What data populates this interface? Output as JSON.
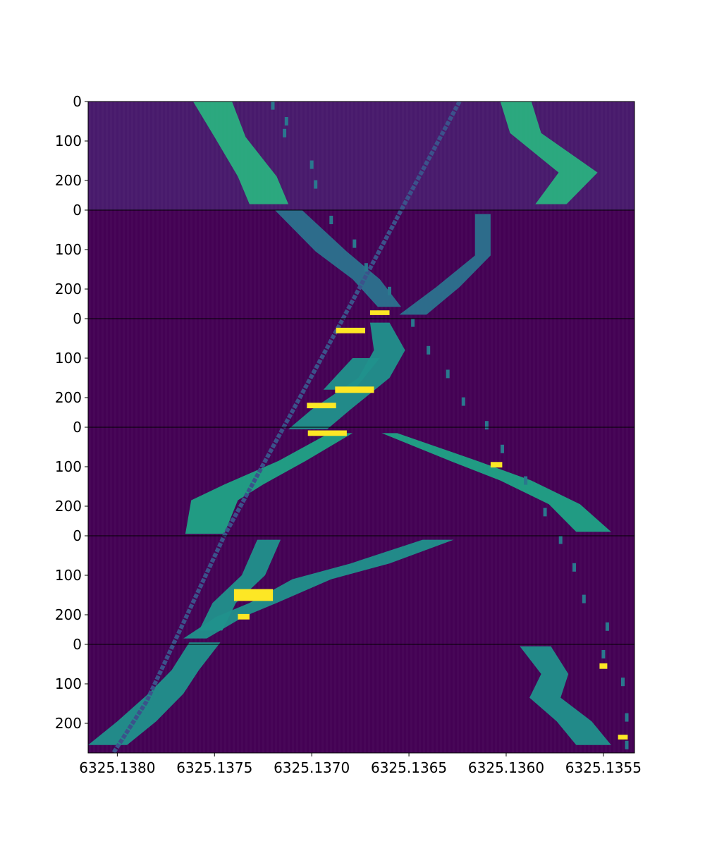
{
  "chart_data": {
    "type": "heatmap",
    "title": "",
    "xlabel": "",
    "ylabel": "",
    "colormap": "viridis",
    "background_color": "#46085c",
    "panel_background_colors": [
      "#481a6c",
      "#440154",
      "#440154",
      "#440154",
      "#440154",
      "#440154"
    ],
    "xlim": [
      6325.13815,
      6325.13534
    ],
    "x_ticks": [
      {
        "value": 6325.138,
        "label": "6325.1380"
      },
      {
        "value": 6325.1375,
        "label": "6325.1375"
      },
      {
        "value": 6325.137,
        "label": "6325.1370"
      },
      {
        "value": 6325.1365,
        "label": "6325.1365"
      },
      {
        "value": 6325.136,
        "label": "6325.1360"
      },
      {
        "value": 6325.1355,
        "label": "6325.1355"
      }
    ],
    "panels": [
      {
        "ylim": [
          0,
          275
        ],
        "y_ticks": [
          {
            "value": 0,
            "label": "0"
          },
          {
            "value": 100,
            "label": "100"
          },
          {
            "value": 200,
            "label": "200"
          }
        ]
      },
      {
        "ylim": [
          0,
          275
        ],
        "y_ticks": [
          {
            "value": 0,
            "label": "0"
          },
          {
            "value": 100,
            "label": "100"
          },
          {
            "value": 200,
            "label": "200"
          }
        ]
      },
      {
        "ylim": [
          0,
          275
        ],
        "y_ticks": [
          {
            "value": 0,
            "label": "0"
          },
          {
            "value": 100,
            "label": "100"
          },
          {
            "value": 200,
            "label": "200"
          }
        ]
      },
      {
        "ylim": [
          0,
          275
        ],
        "y_ticks": [
          {
            "value": 0,
            "label": "0"
          },
          {
            "value": 100,
            "label": "100"
          },
          {
            "value": 200,
            "label": "200"
          }
        ]
      },
      {
        "ylim": [
          0,
          275
        ],
        "y_ticks": [
          {
            "value": 0,
            "label": "0"
          },
          {
            "value": 100,
            "label": "100"
          },
          {
            "value": 200,
            "label": "200"
          }
        ]
      },
      {
        "ylim": [
          0,
          275
        ],
        "y_ticks": [
          {
            "value": 0,
            "label": "0"
          },
          {
            "value": 100,
            "label": "100"
          },
          {
            "value": 200,
            "label": "200"
          }
        ]
      }
    ],
    "features": [
      {
        "name": "upper-left-branch",
        "kind": "band",
        "color": "#2ab07f",
        "points": [
          {
            "x": 6325.13751,
            "y": 0,
            "half_width": 0.0001
          },
          {
            "x": 6325.13742,
            "y": 90,
            "half_width": 8e-05
          },
          {
            "x": 6325.13728,
            "y": 190,
            "half_width": 0.0001
          },
          {
            "x": 6325.13722,
            "y": 260,
            "half_width": 0.0001
          }
        ]
      },
      {
        "name": "upper-right-branch",
        "kind": "band",
        "color": "#2ab07f",
        "points": [
          {
            "x": 6325.13595,
            "y": 0,
            "half_width": 8e-05
          },
          {
            "x": 6325.1359,
            "y": 80,
            "half_width": 8e-05
          },
          {
            "x": 6325.13563,
            "y": 180,
            "half_width": 0.0001
          },
          {
            "x": 6325.13577,
            "y": 260,
            "half_width": 8e-05
          }
        ]
      },
      {
        "name": "panel-2-left-arm",
        "kind": "band",
        "color": "#2c728e",
        "points": [
          {
            "x": 6325.13712,
            "y": 275,
            "half_width": 7e-05
          },
          {
            "x": 6325.1369,
            "y": 380,
            "half_width": 8e-05
          },
          {
            "x": 6325.13672,
            "y": 450,
            "half_width": 7e-05
          },
          {
            "x": 6325.1366,
            "y": 520,
            "half_width": 6e-05
          }
        ]
      },
      {
        "name": "panel-2-right-arm",
        "kind": "band",
        "color": "#2c728e",
        "points": [
          {
            "x": 6325.13612,
            "y": 285,
            "half_width": 4e-05
          },
          {
            "x": 6325.13612,
            "y": 390,
            "half_width": 4e-05
          },
          {
            "x": 6325.1363,
            "y": 470,
            "half_width": 6e-05
          },
          {
            "x": 6325.13648,
            "y": 540,
            "half_width": 7e-05
          }
        ]
      },
      {
        "name": "panel-3-branches",
        "kind": "band",
        "color": "#21918c",
        "points": [
          {
            "x": 6325.13665,
            "y": 560,
            "half_width": 5e-05
          },
          {
            "x": 6325.1366,
            "y": 630,
            "half_width": 8e-05
          },
          {
            "x": 6325.13668,
            "y": 700,
            "half_width": 8e-05
          },
          {
            "x": 6325.1369,
            "y": 780,
            "half_width": 0.0001
          },
          {
            "x": 6325.13702,
            "y": 830,
            "half_width": 0.0001
          }
        ]
      },
      {
        "name": "panel-3-lower-arm",
        "kind": "band",
        "color": "#21918c",
        "points": [
          {
            "x": 6325.13672,
            "y": 650,
            "half_width": 7e-05
          },
          {
            "x": 6325.13686,
            "y": 730,
            "half_width": 8e-05
          }
        ]
      },
      {
        "name": "panel-4-left-arm",
        "kind": "band",
        "color": "#20a386",
        "points": [
          {
            "x": 6325.13685,
            "y": 840,
            "half_width": 6e-05
          },
          {
            "x": 6325.1371,
            "y": 910,
            "half_width": 7e-05
          },
          {
            "x": 6325.13735,
            "y": 970,
            "half_width": 0.0001
          },
          {
            "x": 6325.1375,
            "y": 1010,
            "half_width": 0.00012
          },
          {
            "x": 6325.13755,
            "y": 1095,
            "half_width": 0.0001
          }
        ]
      },
      {
        "name": "panel-4-right-arm",
        "kind": "band",
        "color": "#20a386",
        "points": [
          {
            "x": 6325.1366,
            "y": 840,
            "half_width": 4e-05
          },
          {
            "x": 6325.13622,
            "y": 910,
            "half_width": 7e-05
          },
          {
            "x": 6325.13595,
            "y": 960,
            "half_width": 8e-05
          },
          {
            "x": 6325.1357,
            "y": 1020,
            "half_width": 8e-05
          },
          {
            "x": 6325.13555,
            "y": 1090,
            "half_width": 9e-05
          }
        ]
      },
      {
        "name": "panel-5-long-arm",
        "kind": "band",
        "color": "#21918c",
        "points": [
          {
            "x": 6325.13635,
            "y": 1110,
            "half_width": 8e-05
          },
          {
            "x": 6325.1367,
            "y": 1170,
            "half_width": 0.0001
          },
          {
            "x": 6325.137,
            "y": 1210,
            "half_width": 0.0001
          },
          {
            "x": 6325.13725,
            "y": 1270,
            "half_width": 7e-05
          },
          {
            "x": 6325.13742,
            "y": 1305,
            "half_width": 7e-05
          },
          {
            "x": 6325.1376,
            "y": 1360,
            "half_width": 6e-05
          }
        ]
      },
      {
        "name": "panel-5-left-arm",
        "kind": "band",
        "color": "#21918c",
        "points": [
          {
            "x": 6325.13722,
            "y": 1110,
            "half_width": 6e-05
          },
          {
            "x": 6325.1373,
            "y": 1200,
            "half_width": 6e-05
          },
          {
            "x": 6325.13745,
            "y": 1270,
            "half_width": 6e-05
          },
          {
            "x": 6325.13752,
            "y": 1340,
            "half_width": 6e-05
          }
        ]
      },
      {
        "name": "panel-6-left-arm",
        "kind": "band",
        "color": "#21918c",
        "points": [
          {
            "x": 6325.13755,
            "y": 1370,
            "half_width": 8e-05
          },
          {
            "x": 6325.13765,
            "y": 1440,
            "half_width": 7e-05
          },
          {
            "x": 6325.13775,
            "y": 1500,
            "half_width": 9e-05
          },
          {
            "x": 6325.1379,
            "y": 1570,
            "half_width": 0.0001
          },
          {
            "x": 6325.13805,
            "y": 1630,
            "half_width": 0.0001
          }
        ]
      },
      {
        "name": "panel-6-right-arm",
        "kind": "band",
        "color": "#21918c",
        "points": [
          {
            "x": 6325.13585,
            "y": 1380,
            "half_width": 8e-05
          },
          {
            "x": 6325.13575,
            "y": 1450,
            "half_width": 7e-05
          },
          {
            "x": 6325.1358,
            "y": 1510,
            "half_width": 8e-05
          },
          {
            "x": 6325.13565,
            "y": 1570,
            "half_width": 9e-05
          },
          {
            "x": 6325.13555,
            "y": 1630,
            "half_width": 9e-05
          }
        ]
      },
      {
        "name": "diagonal-line",
        "kind": "line",
        "color": "#3b528b",
        "width": 6,
        "points": [
          {
            "x": 6325.13624,
            "y": 0
          },
          {
            "x": 6325.13685,
            "y": 560
          },
          {
            "x": 6325.13745,
            "y": 1100
          },
          {
            "x": 6325.13785,
            "y": 1520
          },
          {
            "x": 6325.13802,
            "y": 1650
          }
        ]
      },
      {
        "name": "dotted-track-upper",
        "kind": "dots",
        "color": "#2a788e",
        "points": [
          {
            "x": 6325.1372,
            "y": 10
          },
          {
            "x": 6325.13713,
            "y": 50
          },
          {
            "x": 6325.13714,
            "y": 80
          },
          {
            "x": 6325.137,
            "y": 160
          },
          {
            "x": 6325.13698,
            "y": 210
          },
          {
            "x": 6325.1369,
            "y": 300
          },
          {
            "x": 6325.13678,
            "y": 360
          },
          {
            "x": 6325.13672,
            "y": 420
          },
          {
            "x": 6325.1366,
            "y": 480
          },
          {
            "x": 6325.13648,
            "y": 560
          },
          {
            "x": 6325.1364,
            "y": 630
          },
          {
            "x": 6325.1363,
            "y": 690
          },
          {
            "x": 6325.13622,
            "y": 760
          },
          {
            "x": 6325.1361,
            "y": 820
          },
          {
            "x": 6325.13602,
            "y": 880
          },
          {
            "x": 6325.1359,
            "y": 960
          },
          {
            "x": 6325.1358,
            "y": 1040
          },
          {
            "x": 6325.13572,
            "y": 1110
          },
          {
            "x": 6325.13565,
            "y": 1180
          },
          {
            "x": 6325.1356,
            "y": 1260
          },
          {
            "x": 6325.13548,
            "y": 1330
          },
          {
            "x": 6325.1355,
            "y": 1400
          },
          {
            "x": 6325.1354,
            "y": 1470
          },
          {
            "x": 6325.13538,
            "y": 1560
          },
          {
            "x": 6325.13538,
            "y": 1630
          }
        ]
      },
      {
        "name": "bright-highlights",
        "kind": "blobs",
        "color": "#fde725",
        "points": [
          {
            "x": 6325.13665,
            "y": 535,
            "w": 0.0001,
            "h": 12
          },
          {
            "x": 6325.1368,
            "y": 580,
            "w": 0.00015,
            "h": 14
          },
          {
            "x": 6325.13678,
            "y": 730,
            "w": 0.0002,
            "h": 16
          },
          {
            "x": 6325.13695,
            "y": 770,
            "w": 0.00015,
            "h": 14
          },
          {
            "x": 6325.13692,
            "y": 840,
            "w": 0.0002,
            "h": 14
          },
          {
            "x": 6325.13605,
            "y": 920,
            "w": 6e-05,
            "h": 14
          },
          {
            "x": 6325.1373,
            "y": 1250,
            "w": 0.0002,
            "h": 30
          },
          {
            "x": 6325.13735,
            "y": 1305,
            "w": 6e-05,
            "h": 14
          },
          {
            "x": 6325.1355,
            "y": 1430,
            "w": 4e-05,
            "h": 14
          },
          {
            "x": 6325.1354,
            "y": 1610,
            "w": 5e-05,
            "h": 12
          }
        ]
      }
    ]
  }
}
